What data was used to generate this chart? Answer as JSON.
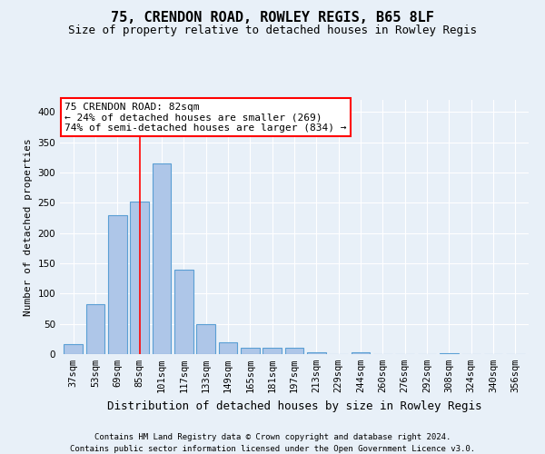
{
  "title_line1": "75, CRENDON ROAD, ROWLEY REGIS, B65 8LF",
  "title_line2": "Size of property relative to detached houses in Rowley Regis",
  "xlabel": "Distribution of detached houses by size in Rowley Regis",
  "ylabel": "Number of detached properties",
  "footnote1": "Contains HM Land Registry data © Crown copyright and database right 2024.",
  "footnote2": "Contains public sector information licensed under the Open Government Licence v3.0.",
  "bar_labels": [
    "37sqm",
    "53sqm",
    "69sqm",
    "85sqm",
    "101sqm",
    "117sqm",
    "133sqm",
    "149sqm",
    "165sqm",
    "181sqm",
    "197sqm",
    "213sqm",
    "229sqm",
    "244sqm",
    "260sqm",
    "276sqm",
    "292sqm",
    "308sqm",
    "324sqm",
    "340sqm",
    "356sqm"
  ],
  "bar_values": [
    17,
    82,
    230,
    252,
    315,
    140,
    50,
    20,
    10,
    10,
    10,
    3,
    0,
    3,
    0,
    0,
    0,
    2,
    0,
    0,
    0
  ],
  "bar_color": "#aec6e8",
  "bar_edge_color": "#5a9fd4",
  "ylim": [
    0,
    420
  ],
  "yticks": [
    0,
    50,
    100,
    150,
    200,
    250,
    300,
    350,
    400
  ],
  "vline_bin_index": 3,
  "property_label": "75 CRENDON ROAD: 82sqm",
  "annotation_line1": "← 24% of detached houses are smaller (269)",
  "annotation_line2": "74% of semi-detached houses are larger (834) →",
  "background_color": "#e8f0f8",
  "grid_color": "#ffffff",
  "title1_fontsize": 11,
  "title2_fontsize": 9,
  "ylabel_fontsize": 8,
  "xlabel_fontsize": 9,
  "tick_fontsize": 7.5,
  "annot_fontsize": 8,
  "footnote_fontsize": 6.5
}
